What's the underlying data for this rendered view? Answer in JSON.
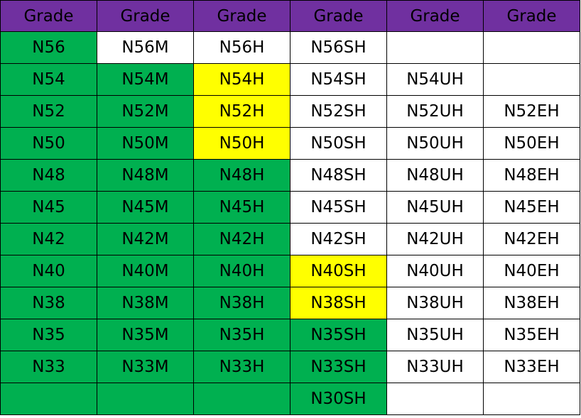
{
  "table": {
    "header": [
      "Grade",
      "Grade",
      "Grade",
      "Grade",
      "Grade",
      "Grade"
    ],
    "rows": [
      [
        "N56",
        "N56M",
        "N56H",
        "N56SH",
        null,
        null
      ],
      [
        "N54",
        "N54M",
        "N54H",
        "N54SH",
        "N54UH",
        null
      ],
      [
        "N52",
        "N52M",
        "N52H",
        "N52SH",
        "N52UH",
        "N52EH"
      ],
      [
        "N50",
        "N50M",
        "N50H",
        "N50SH",
        "N50UH",
        "N50EH"
      ],
      [
        "N48",
        "N48M",
        "N48H",
        "N48SH",
        "N48UH",
        "N48EH"
      ],
      [
        "N45",
        "N45M",
        "N45H",
        "N45SH",
        "N45UH",
        "N45EH"
      ],
      [
        "N42",
        "N42M",
        "N42H",
        "N42SH",
        "N42UH",
        "N42EH"
      ],
      [
        "N40",
        "N40M",
        "N40H",
        "N40SH",
        "N40UH",
        "N40EH"
      ],
      [
        "N38",
        "N38M",
        "N38H",
        "N38SH",
        "N38UH",
        "N38EH"
      ],
      [
        "N35",
        "N35M",
        "N35H",
        "N35SH",
        "N35UH",
        "N35EH"
      ],
      [
        "N33",
        "N33M",
        "N33H",
        "N33SH",
        "N33UH",
        "N33EH"
      ],
      [
        null,
        null,
        null,
        "N30SH",
        null,
        null
      ]
    ]
  }
}
